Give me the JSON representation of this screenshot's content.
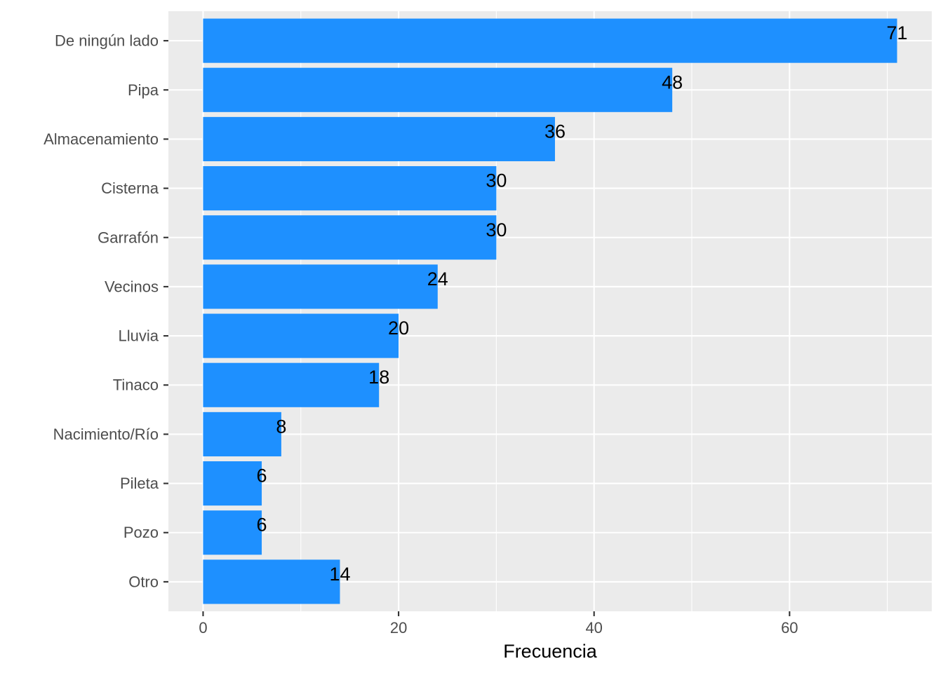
{
  "chart_data": {
    "type": "bar",
    "orientation": "horizontal",
    "categories": [
      "De ningún lado",
      "Pipa",
      "Almacenamiento",
      "Cisterna",
      "Garrafón",
      "Vecinos",
      "Lluvia",
      "Tinaco",
      "Nacimiento/Río",
      "Pileta",
      "Pozo",
      "Otro"
    ],
    "values": [
      71,
      48,
      36,
      30,
      30,
      24,
      20,
      18,
      8,
      6,
      6,
      14
    ],
    "data_labels": [
      "71",
      "48",
      "36",
      "30",
      "30",
      "24",
      "20",
      "18",
      "8",
      "6",
      "6",
      "14"
    ],
    "xlabel": "Frecuencia",
    "ylabel": "",
    "xlim": [
      -3.55,
      74.55
    ],
    "x_ticks": [
      0,
      20,
      40,
      60
    ],
    "x_tick_labels": [
      "0",
      "20",
      "40",
      "60"
    ],
    "grid": true,
    "legend": "none",
    "colors": {
      "bar": "#1E90FF",
      "panel_background": "#EBEBEB",
      "grid": "#FFFFFF",
      "tick_text": "#4D4D4D",
      "label_text": "#000000"
    }
  }
}
